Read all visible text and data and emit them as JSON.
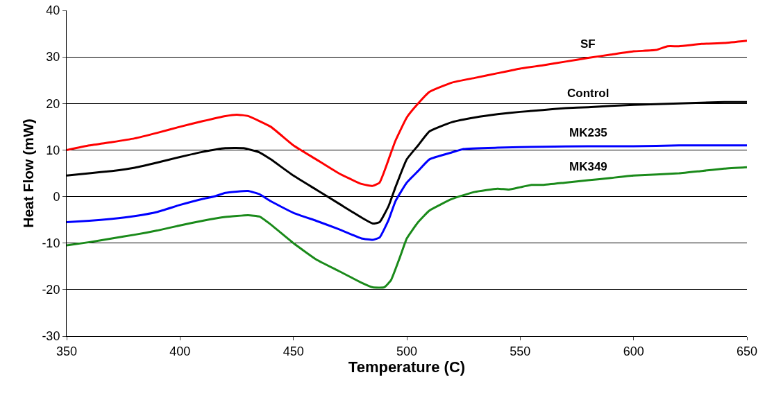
{
  "chart_data": {
    "type": "line",
    "xlabel": "Temperature (C)",
    "ylabel": "Heat Flow (mW)",
    "xlim": [
      350,
      650
    ],
    "xticks": [
      350,
      400,
      450,
      500,
      550,
      600,
      650
    ],
    "ylim": [
      -30,
      40
    ],
    "yticks": [
      -30,
      -20,
      -10,
      0,
      10,
      20,
      30,
      40
    ],
    "grid": "y",
    "legend": false,
    "marker": "none",
    "line_style": "solid",
    "series": [
      {
        "name": "SF",
        "color": "#ff0000",
        "x": [
          350,
          360,
          370,
          380,
          390,
          400,
          410,
          420,
          425,
          430,
          440,
          450,
          460,
          470,
          480,
          485,
          488,
          492,
          495,
          500,
          505,
          510,
          520,
          530,
          540,
          550,
          560,
          570,
          580,
          590,
          600,
          610,
          615,
          620,
          630,
          640,
          650
        ],
        "values": [
          10,
          11,
          11.7,
          12.5,
          13.7,
          15,
          16.2,
          17.3,
          17.6,
          17.3,
          15,
          11,
          8,
          5,
          2.7,
          2.3,
          3,
          8,
          12,
          17,
          20,
          22.5,
          24.5,
          25.5,
          26.5,
          27.5,
          28.2,
          29,
          29.8,
          30.5,
          31.2,
          31.5,
          32.3,
          32.3,
          32.8,
          33,
          33.5
        ]
      },
      {
        "name": "Control",
        "color": "#000000",
        "x": [
          350,
          360,
          370,
          380,
          390,
          400,
          410,
          420,
          428,
          435,
          440,
          450,
          460,
          470,
          480,
          485,
          488,
          492,
          495,
          500,
          505,
          510,
          520,
          530,
          540,
          550,
          560,
          570,
          580,
          590,
          600,
          620,
          640,
          650
        ],
        "values": [
          4.5,
          5,
          5.5,
          6.2,
          7.3,
          8.5,
          9.6,
          10.4,
          10.4,
          9.5,
          8,
          4.5,
          1.5,
          -1.5,
          -4.5,
          -5.8,
          -5.5,
          -2,
          2,
          8,
          11,
          14,
          16,
          17,
          17.7,
          18.2,
          18.6,
          19,
          19.2,
          19.5,
          19.7,
          20,
          20.3,
          20.3
        ]
      },
      {
        "name": "MK235",
        "color": "#0000ff",
        "x": [
          350,
          360,
          370,
          380,
          390,
          400,
          410,
          415,
          420,
          430,
          435,
          440,
          450,
          460,
          470,
          480,
          485,
          488,
          492,
          495,
          500,
          505,
          510,
          520,
          525,
          540,
          560,
          580,
          600,
          620,
          640,
          650
        ],
        "values": [
          -5.5,
          -5.2,
          -4.8,
          -4.2,
          -3.3,
          -1.8,
          -0.5,
          0,
          0.8,
          1.2,
          0.5,
          -1,
          -3.5,
          -5.2,
          -7,
          -9,
          -9.3,
          -8.8,
          -5,
          -1,
          3,
          5.5,
          8,
          9.5,
          10.2,
          10.5,
          10.7,
          10.8,
          10.8,
          11,
          11,
          11
        ]
      },
      {
        "name": "MK349",
        "color": "#1a8a1a",
        "x": [
          350,
          360,
          370,
          380,
          390,
          400,
          410,
          420,
          430,
          435,
          440,
          450,
          460,
          470,
          480,
          485,
          490,
          493,
          497,
          500,
          505,
          510,
          520,
          530,
          540,
          545,
          550,
          555,
          560,
          570,
          580,
          590,
          600,
          620,
          630,
          640,
          650
        ],
        "values": [
          -10.5,
          -9.8,
          -9,
          -8.2,
          -7.3,
          -6.2,
          -5.2,
          -4.4,
          -4,
          -4.3,
          -6,
          -10,
          -13.5,
          -16,
          -18.5,
          -19.5,
          -19.5,
          -18,
          -13,
          -9,
          -5.5,
          -3,
          -0.5,
          1,
          1.7,
          1.5,
          2,
          2.5,
          2.5,
          3,
          3.5,
          4,
          4.5,
          5,
          5.5,
          6,
          6.3
        ]
      }
    ]
  }
}
